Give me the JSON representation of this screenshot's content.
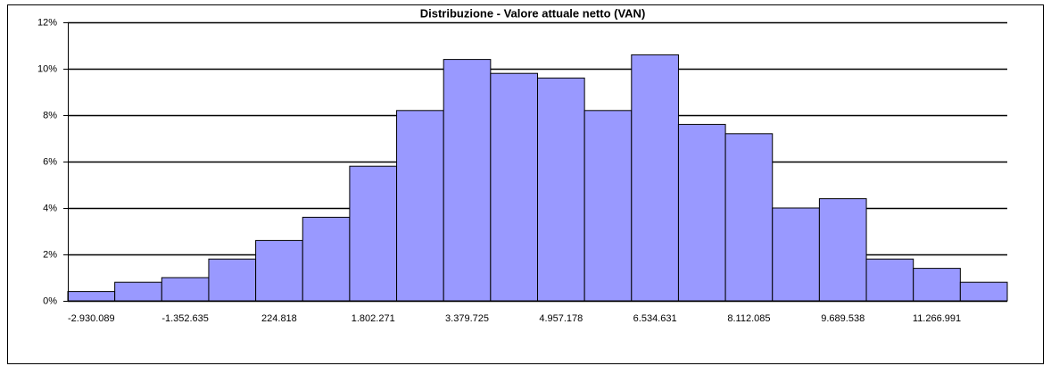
{
  "chart_data": {
    "type": "bar",
    "title": "Distribuzione - Valore attuale netto (VAN)",
    "categories": [
      "-2.930.089",
      null,
      "-1.352.635",
      null,
      "224.818",
      null,
      "1.802.271",
      null,
      "3.379.725",
      null,
      "4.957.178",
      null,
      "6.534.631",
      null,
      "8.112.085",
      null,
      "9.689.538",
      null,
      "11.266.991",
      null
    ],
    "values": [
      0.4,
      0.8,
      1.0,
      1.8,
      2.6,
      3.6,
      5.8,
      8.2,
      10.4,
      9.8,
      9.6,
      8.2,
      10.6,
      7.6,
      7.2,
      4.0,
      4.4,
      1.8,
      1.4,
      0.8
    ],
    "color": "#9999ff",
    "ylim": [
      0,
      12
    ],
    "yticks": [
      {
        "value": 0,
        "label": "0%"
      },
      {
        "value": 2,
        "label": "2%"
      },
      {
        "value": 4,
        "label": "4%"
      },
      {
        "value": 6,
        "label": "6%"
      },
      {
        "value": 8,
        "label": "8%"
      },
      {
        "value": 10,
        "label": "10%"
      },
      {
        "value": 12,
        "label": "12%"
      }
    ],
    "grid": true
  }
}
